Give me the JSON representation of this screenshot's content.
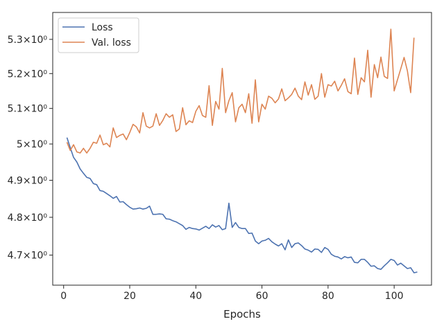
{
  "chart_data": {
    "type": "line",
    "title": "",
    "xlabel": "Epochs",
    "ylabel": "",
    "y_scale": "log",
    "xlim": [
      -3.3,
      111.3
    ],
    "ylim": [
      4.622,
      5.38
    ],
    "grid": false,
    "legend_position": "top-left",
    "x_ticks": [
      0,
      20,
      40,
      60,
      80,
      100
    ],
    "x_tick_labels": [
      "0",
      "20",
      "40",
      "60",
      "80",
      "100"
    ],
    "y_ticks": [
      4.7,
      4.8,
      4.9,
      5.0,
      5.1,
      5.2,
      5.3
    ],
    "y_tick_labels": [
      "4.7×10⁰",
      "4.8×10⁰",
      "4.9×10⁰",
      "5×10⁰",
      "5.1×10⁰",
      "5.2×10⁰",
      "5.3×10⁰"
    ],
    "x_start": 1,
    "series": [
      {
        "name": "Loss",
        "color": "#4c72b0",
        "values": [
          5.018,
          4.99,
          4.963,
          4.95,
          4.931,
          4.919,
          4.908,
          4.905,
          4.891,
          4.888,
          4.872,
          4.87,
          4.864,
          4.858,
          4.851,
          4.856,
          4.841,
          4.842,
          4.834,
          4.827,
          4.822,
          4.823,
          4.825,
          4.822,
          4.824,
          4.83,
          4.808,
          4.808,
          4.809,
          4.808,
          4.796,
          4.795,
          4.791,
          4.788,
          4.783,
          4.778,
          4.768,
          4.773,
          4.77,
          4.769,
          4.766,
          4.771,
          4.776,
          4.77,
          4.78,
          4.774,
          4.778,
          4.767,
          4.77,
          4.838,
          4.773,
          4.786,
          4.773,
          4.77,
          4.77,
          4.757,
          4.758,
          4.737,
          4.73,
          4.737,
          4.739,
          4.744,
          4.735,
          4.729,
          4.724,
          4.73,
          4.714,
          4.74,
          4.72,
          4.73,
          4.732,
          4.725,
          4.716,
          4.713,
          4.708,
          4.716,
          4.715,
          4.707,
          4.72,
          4.715,
          4.702,
          4.697,
          4.695,
          4.69,
          4.696,
          4.693,
          4.695,
          4.681,
          4.68,
          4.689,
          4.689,
          4.681,
          4.671,
          4.672,
          4.665,
          4.663,
          4.672,
          4.68,
          4.689,
          4.686,
          4.674,
          4.679,
          4.672,
          4.665,
          4.667,
          4.654,
          4.656
        ]
      },
      {
        "name": "Val. loss",
        "color": "#dd8452",
        "values": [
          5.005,
          4.982,
          4.998,
          4.978,
          4.975,
          4.988,
          4.975,
          4.988,
          5.005,
          5.002,
          5.025,
          4.998,
          5.002,
          4.992,
          5.045,
          5.018,
          5.024,
          5.028,
          5.012,
          5.032,
          5.055,
          5.048,
          5.031,
          5.088,
          5.05,
          5.045,
          5.05,
          5.085,
          5.052,
          5.066,
          5.085,
          5.075,
          5.082,
          5.035,
          5.042,
          5.102,
          5.054,
          5.065,
          5.06,
          5.092,
          5.108,
          5.08,
          5.075,
          5.165,
          5.052,
          5.12,
          5.098,
          5.215,
          5.088,
          5.122,
          5.145,
          5.062,
          5.102,
          5.112,
          5.088,
          5.142,
          5.058,
          5.182,
          5.062,
          5.112,
          5.098,
          5.135,
          5.129,
          5.116,
          5.127,
          5.156,
          5.122,
          5.13,
          5.14,
          5.158,
          5.135,
          5.125,
          5.176,
          5.138,
          5.168,
          5.126,
          5.135,
          5.2,
          5.132,
          5.168,
          5.164,
          5.178,
          5.15,
          5.166,
          5.185,
          5.148,
          5.142,
          5.245,
          5.14,
          5.188,
          5.176,
          5.268,
          5.132,
          5.226,
          5.188,
          5.248,
          5.192,
          5.186,
          5.33,
          5.15,
          5.182,
          5.214,
          5.247,
          5.208,
          5.145,
          5.305
        ]
      }
    ]
  }
}
